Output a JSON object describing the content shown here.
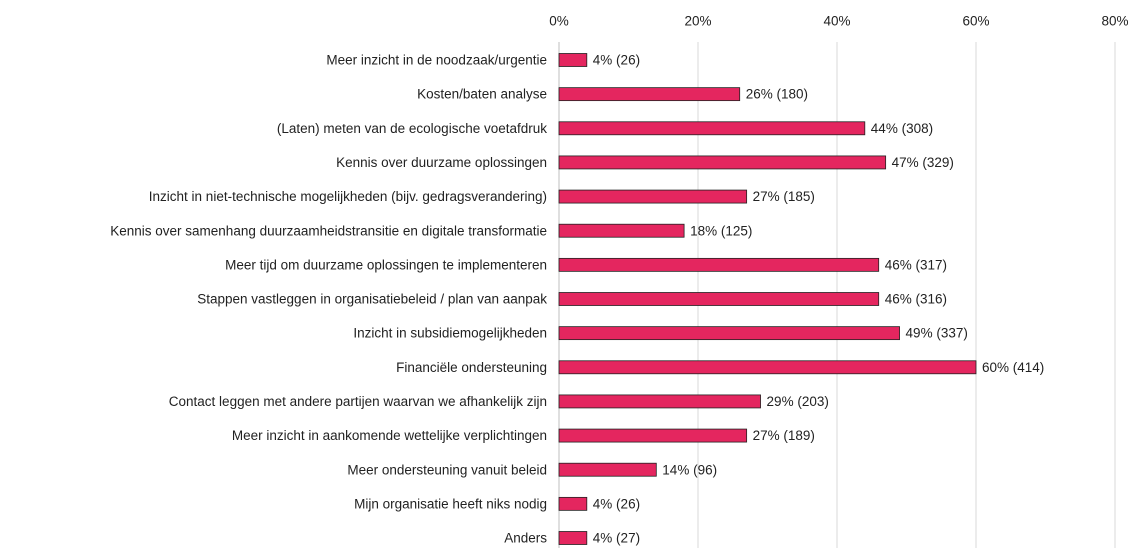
{
  "chart_data": {
    "type": "barh",
    "categories": [
      "Meer inzicht in de noodzaak/urgentie",
      "Kosten/baten analyse",
      "(Laten) meten van de ecologische voetafdruk",
      "Kennis over duurzame oplossingen",
      "Inzicht in niet-technische mogelijkheden (bijv. gedragsverandering)",
      "Kennis over samenhang duurzaamheidstransitie en digitale transformatie",
      "Meer tijd om duurzame oplossingen te implementeren",
      "Stappen vastleggen in organisatiebeleid / plan van aanpak",
      "Inzicht in subsidiemogelijkheden",
      "Financiële ondersteuning",
      "Contact leggen met andere partijen waarvan we afhankelijk zijn",
      "Meer inzicht in aankomende wettelijke verplichtingen",
      "Meer ondersteuning vanuit beleid",
      "Mijn organisatie heeft niks nodig",
      "Anders"
    ],
    "values": [
      4,
      26,
      44,
      47,
      27,
      18,
      46,
      46,
      49,
      60,
      29,
      27,
      14,
      4,
      4
    ],
    "value_labels": [
      "4% (26)",
      "26% (180)",
      "44% (308)",
      "47% (329)",
      "27% (185)",
      "18% (125)",
      "46% (317)",
      "46% (316)",
      "49% (337)",
      "60% (414)",
      "29% (203)",
      "27% (189)",
      "14% (96)",
      "4% (26)",
      "4% (27)"
    ],
    "color": "#e4265f",
    "xlim": [
      0,
      80
    ],
    "xticks": [
      {
        "value": 0,
        "label": "0%"
      },
      {
        "value": 20,
        "label": "20%"
      },
      {
        "value": 40,
        "label": "40%"
      },
      {
        "value": 60,
        "label": "60%"
      },
      {
        "value": 80,
        "label": "80%"
      }
    ],
    "grid": true
  }
}
